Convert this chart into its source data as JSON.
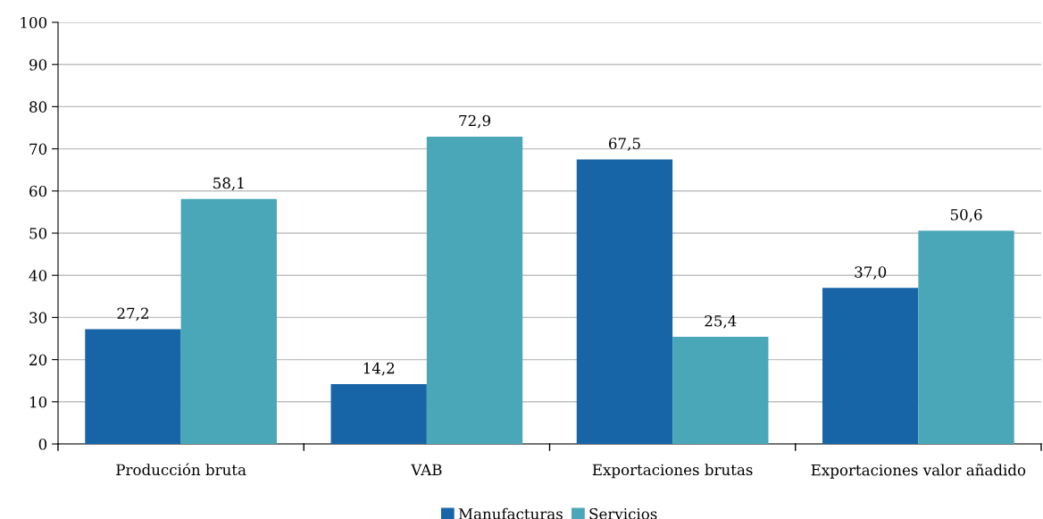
{
  "chart_data": {
    "type": "bar",
    "categories": [
      "Producción bruta",
      "VAB",
      "Exportaciones brutas",
      "Exportaciones valor añadido"
    ],
    "series": [
      {
        "name": "Manufacturas",
        "color": "#1764a6",
        "values": [
          27.2,
          14.2,
          67.5,
          37.0
        ],
        "value_labels": [
          "27,2",
          "14,2",
          "67,5",
          "37,0"
        ]
      },
      {
        "name": "Servicios",
        "color": "#4aa7b8",
        "values": [
          58.1,
          72.9,
          25.4,
          50.6
        ],
        "value_labels": [
          "58,1",
          "72,9",
          "25,4",
          "50,6"
        ]
      }
    ],
    "ylim": [
      0,
      100
    ],
    "yticks": [
      0,
      10,
      20,
      30,
      40,
      50,
      60,
      70,
      80,
      90,
      100
    ],
    "grid": "y",
    "legend": "bottom"
  }
}
